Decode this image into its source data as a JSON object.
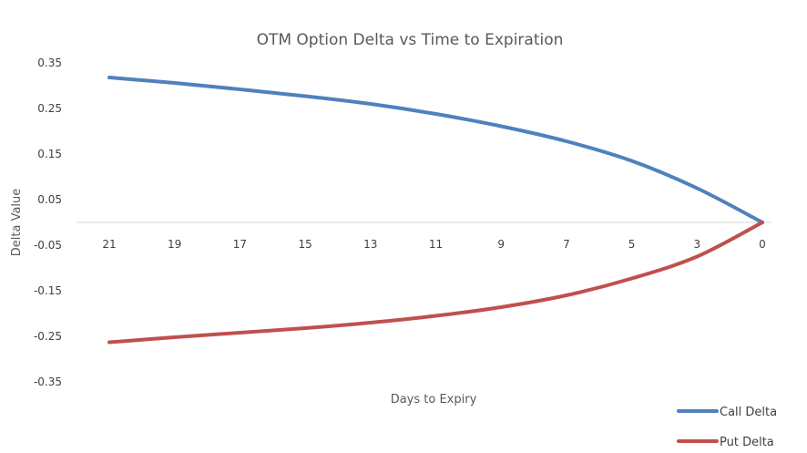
{
  "chart_data": {
    "type": "line",
    "title": "OTM Option Delta vs Time to Expiration",
    "xlabel": "Days to Expiry",
    "ylabel": "Delta Value",
    "x_tick_labels": [
      "21",
      "19",
      "17",
      "15",
      "13",
      "11",
      "9",
      "7",
      "5",
      "3",
      "0"
    ],
    "y_tick_labels": [
      "0.35",
      "0.25",
      "0.15",
      "0.05",
      "-0.05",
      "-0.15",
      "-0.25",
      "-0.35"
    ],
    "ylim": [
      -0.35,
      0.35
    ],
    "x": [
      21,
      19,
      17,
      15,
      13,
      11,
      9,
      7,
      5,
      3,
      0
    ],
    "series": [
      {
        "name": "Call Delta",
        "color": "#4f81bd",
        "values": [
          0.318,
          0.306,
          0.292,
          0.277,
          0.26,
          0.238,
          0.211,
          0.178,
          0.135,
          0.075,
          0.0
        ]
      },
      {
        "name": "Put Delta",
        "color": "#c0504d",
        "values": [
          -0.263,
          -0.252,
          -0.242,
          -0.232,
          -0.22,
          -0.205,
          -0.186,
          -0.16,
          -0.123,
          -0.075,
          0.0
        ]
      }
    ],
    "grid": false,
    "legend_position": "bottom-right"
  }
}
